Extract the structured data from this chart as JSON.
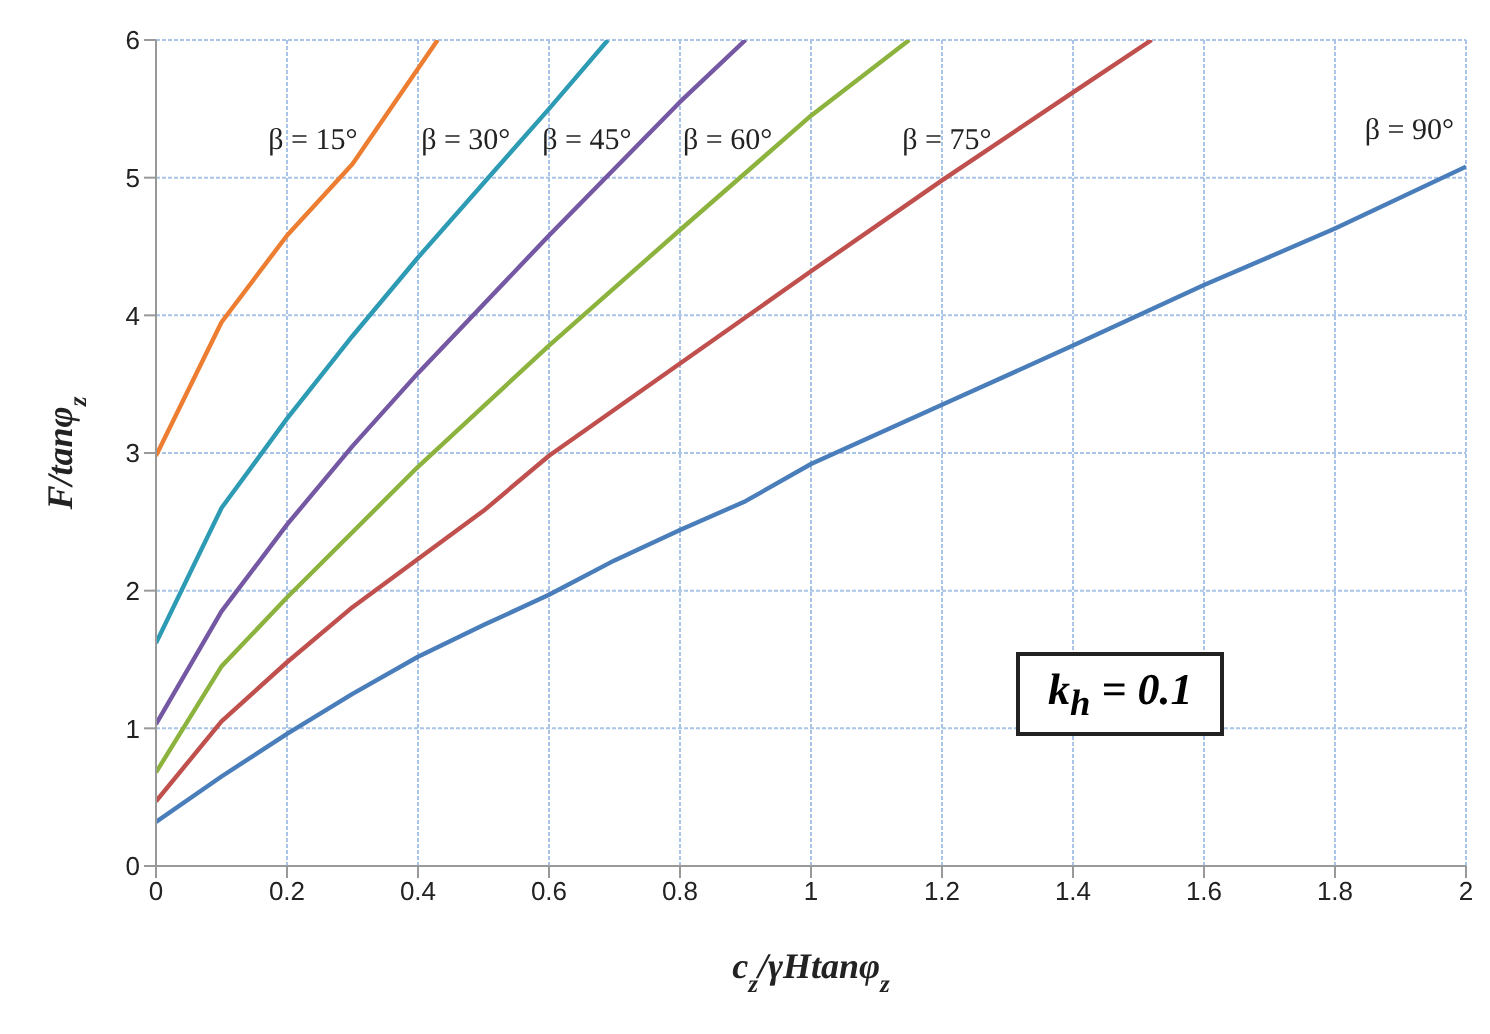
{
  "chart_data": {
    "type": "line",
    "xlabel": "c$_{z}$/γHtanφ$_{z}$",
    "ylabel": "F/tanφ$_{z}$",
    "xlim": [
      0,
      2
    ],
    "ylim": [
      0,
      6
    ],
    "xticks": [
      0,
      0.2,
      0.4,
      0.6,
      0.8,
      1,
      1.2,
      1.4,
      1.6,
      1.8,
      2
    ],
    "yticks": [
      0,
      1,
      2,
      3,
      4,
      5,
      6
    ],
    "grid": true,
    "marker": "none",
    "line_style": "solid",
    "series": [
      {
        "name": "β = 15°",
        "color": "#ed7d31",
        "x": [
          0,
          0.1,
          0.2,
          0.3,
          0.43
        ],
        "values": [
          2.98,
          3.95,
          4.58,
          5.1,
          6
        ]
      },
      {
        "name": "β = 30°",
        "color": "#2e9bb5",
        "x": [
          0,
          0.1,
          0.2,
          0.3,
          0.4,
          0.6,
          0.69
        ],
        "values": [
          1.62,
          2.6,
          3.25,
          3.85,
          4.42,
          5.5,
          6
        ]
      },
      {
        "name": "β = 45°",
        "color": "#7558a3",
        "x": [
          0,
          0.1,
          0.2,
          0.3,
          0.4,
          0.6,
          0.8,
          0.9
        ],
        "values": [
          1.03,
          1.85,
          2.48,
          3.05,
          3.58,
          4.58,
          5.55,
          6
        ]
      },
      {
        "name": "β = 60°",
        "color": "#8db33f",
        "x": [
          0,
          0.1,
          0.2,
          0.4,
          0.6,
          0.8,
          1,
          1.15
        ],
        "values": [
          0.68,
          1.45,
          1.95,
          2.9,
          3.78,
          4.62,
          5.45,
          6
        ]
      },
      {
        "name": "β = 75°",
        "color": "#c0504d",
        "x": [
          0,
          0.1,
          0.2,
          0.3,
          0.4,
          0.5,
          0.6,
          0.8,
          1,
          1.2,
          1.4,
          1.52
        ],
        "values": [
          0.47,
          1.05,
          1.48,
          1.88,
          2.23,
          2.58,
          2.98,
          3.65,
          4.32,
          4.98,
          5.62,
          6
        ]
      },
      {
        "name": "β = 90°",
        "color": "#4a7ebb",
        "x": [
          0,
          0.1,
          0.2,
          0.3,
          0.4,
          0.5,
          0.6,
          0.7,
          0.8,
          0.9,
          1,
          1.2,
          1.4,
          1.6,
          1.8,
          2
        ],
        "values": [
          0.32,
          0.65,
          0.96,
          1.25,
          1.52,
          1.75,
          1.97,
          2.22,
          2.44,
          2.65,
          2.92,
          3.35,
          3.78,
          4.22,
          4.63,
          5.08
        ]
      }
    ],
    "annotations": [
      "k$_{h}$ = 0.1"
    ]
  }
}
